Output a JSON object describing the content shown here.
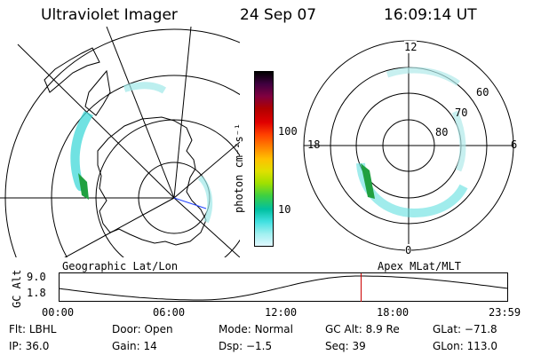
{
  "header": {
    "instrument": "Ultraviolet Imager",
    "date": "24 Sep 07",
    "time": "16:09:14 UT"
  },
  "geographic_panel": {
    "label": "Geographic Lat/Lon"
  },
  "apex_panel": {
    "label": "Apex MLat/MLT",
    "mlt_labels": {
      "top": "12",
      "bottom": "0",
      "left": "18",
      "right": "6"
    },
    "mlat_labels": [
      "60",
      "70",
      "80"
    ]
  },
  "colorbar": {
    "unit_label": "photon cm⁻²s⁻¹",
    "ticks": [
      "100",
      "10"
    ],
    "colors": [
      "#000000",
      "#400040",
      "#800040",
      "#b00000",
      "#e00000",
      "#ff4000",
      "#ff8000",
      "#ffc000",
      "#e0e000",
      "#a0e000",
      "#40d040",
      "#00c0a0",
      "#40e0e0",
      "#a0f0f0",
      "#e0f8ff"
    ]
  },
  "altitude_panel": {
    "ylabel": "GC Alt",
    "y_ticks": [
      "9.0",
      "1.8"
    ],
    "x_ticks": [
      "00:00",
      "06:00",
      "12:00",
      "18:00",
      "23:59"
    ],
    "current_time_hours": 16.15,
    "marker_color": "#cc0000"
  },
  "info": {
    "filter_label": "Flt:",
    "filter_value": "LBHL",
    "door_label": "Door:",
    "door_value": "Open",
    "mode_label": "Mode:",
    "mode_value": "Normal",
    "gcalt_label": "GC Alt:",
    "gcalt_value": "8.9 Re",
    "glat_label": "GLat:",
    "glat_value": "−71.8",
    "ip_label": "IP:",
    "ip_value": "36.0",
    "gain_label": "Gain:",
    "gain_value": "14",
    "dsp_label": "Dsp:",
    "dsp_value": "−1.5",
    "seq_label": "Seq:",
    "seq_value": "39",
    "glon_label": "GLon:",
    "glon_value": "113.0"
  }
}
